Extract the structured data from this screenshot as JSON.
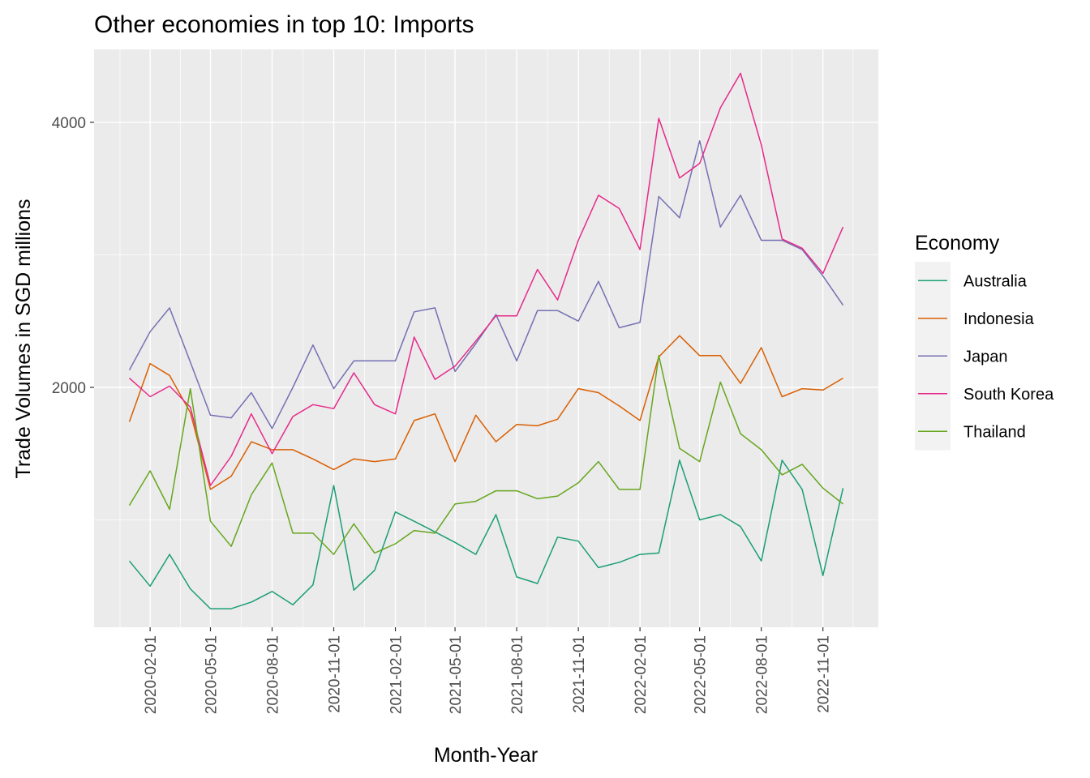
{
  "chart_data": {
    "type": "line",
    "title": "Other economies in top 10: Imports",
    "xlabel": "Month-Year",
    "ylabel": "Trade Volumes in SGD millions",
    "x": [
      "2020-01-01",
      "2020-02-01",
      "2020-03-01",
      "2020-04-01",
      "2020-05-01",
      "2020-06-01",
      "2020-07-01",
      "2020-08-01",
      "2020-09-01",
      "2020-10-01",
      "2020-11-01",
      "2020-12-01",
      "2021-01-01",
      "2021-02-01",
      "2021-03-01",
      "2021-04-01",
      "2021-05-01",
      "2021-06-01",
      "2021-07-01",
      "2021-08-01",
      "2021-09-01",
      "2021-10-01",
      "2021-11-01",
      "2021-12-01",
      "2022-01-01",
      "2022-02-01",
      "2022-03-01",
      "2022-04-01",
      "2022-05-01",
      "2022-06-01",
      "2022-07-01",
      "2022-08-01",
      "2022-09-01",
      "2022-10-01",
      "2022-11-01",
      "2022-12-01"
    ],
    "x_ticks": [
      "2020-02-01",
      "2020-05-01",
      "2020-08-01",
      "2020-11-01",
      "2021-02-01",
      "2021-05-01",
      "2021-08-01",
      "2021-11-01",
      "2022-02-01",
      "2022-05-01",
      "2022-08-01",
      "2022-11-01"
    ],
    "y_ticks": [
      2000,
      4000
    ],
    "ylim": [
      190,
      4550
    ],
    "grid": true,
    "legend_title": "Economy",
    "legend_position": "right",
    "series": [
      {
        "name": "Australia",
        "color": "#1B9E77",
        "values": [
          690,
          500,
          740,
          480,
          330,
          330,
          380,
          460,
          360,
          510,
          1260,
          470,
          620,
          1060,
          990,
          910,
          830,
          740,
          1040,
          570,
          520,
          870,
          840,
          640,
          680,
          740,
          750,
          1450,
          1000,
          1040,
          950,
          690,
          1450,
          1230,
          580,
          1240
        ]
      },
      {
        "name": "Indonesia",
        "color": "#D95F02",
        "values": [
          1740,
          2180,
          2090,
          1810,
          1230,
          1330,
          1590,
          1530,
          1530,
          1460,
          1380,
          1460,
          1440,
          1460,
          1750,
          1800,
          1440,
          1790,
          1590,
          1720,
          1710,
          1760,
          1990,
          1960,
          1860,
          1750,
          2230,
          2390,
          2240,
          2240,
          2030,
          2300,
          1930,
          1990,
          1980,
          2070
        ]
      },
      {
        "name": "Japan",
        "color": "#7570B3",
        "values": [
          2130,
          2420,
          2600,
          2190,
          1790,
          1770,
          1960,
          1690,
          2000,
          2320,
          1990,
          2200,
          2200,
          2200,
          2570,
          2600,
          2120,
          2330,
          2550,
          2200,
          2580,
          2580,
          2500,
          2800,
          2450,
          2490,
          3440,
          3280,
          3860,
          3210,
          3450,
          3110,
          3110,
          3040,
          2840,
          2620
        ]
      },
      {
        "name": "South Korea",
        "color": "#E7298A",
        "values": [
          2070,
          1930,
          2010,
          1850,
          1260,
          1480,
          1800,
          1500,
          1780,
          1870,
          1840,
          2110,
          1870,
          1800,
          2380,
          2060,
          2160,
          2350,
          2540,
          2540,
          2890,
          2660,
          3110,
          3450,
          3350,
          3040,
          4030,
          3580,
          3690,
          4110,
          4370,
          3830,
          3120,
          3050,
          2860,
          3210
        ]
      },
      {
        "name": "Thailand",
        "color": "#66A61E",
        "values": [
          1110,
          1370,
          1080,
          1990,
          990,
          800,
          1190,
          1430,
          900,
          900,
          740,
          970,
          750,
          820,
          920,
          900,
          1120,
          1140,
          1220,
          1220,
          1160,
          1180,
          1280,
          1440,
          1230,
          1230,
          2240,
          1540,
          1440,
          2040,
          1650,
          1530,
          1340,
          1420,
          1240,
          1120
        ]
      }
    ]
  }
}
